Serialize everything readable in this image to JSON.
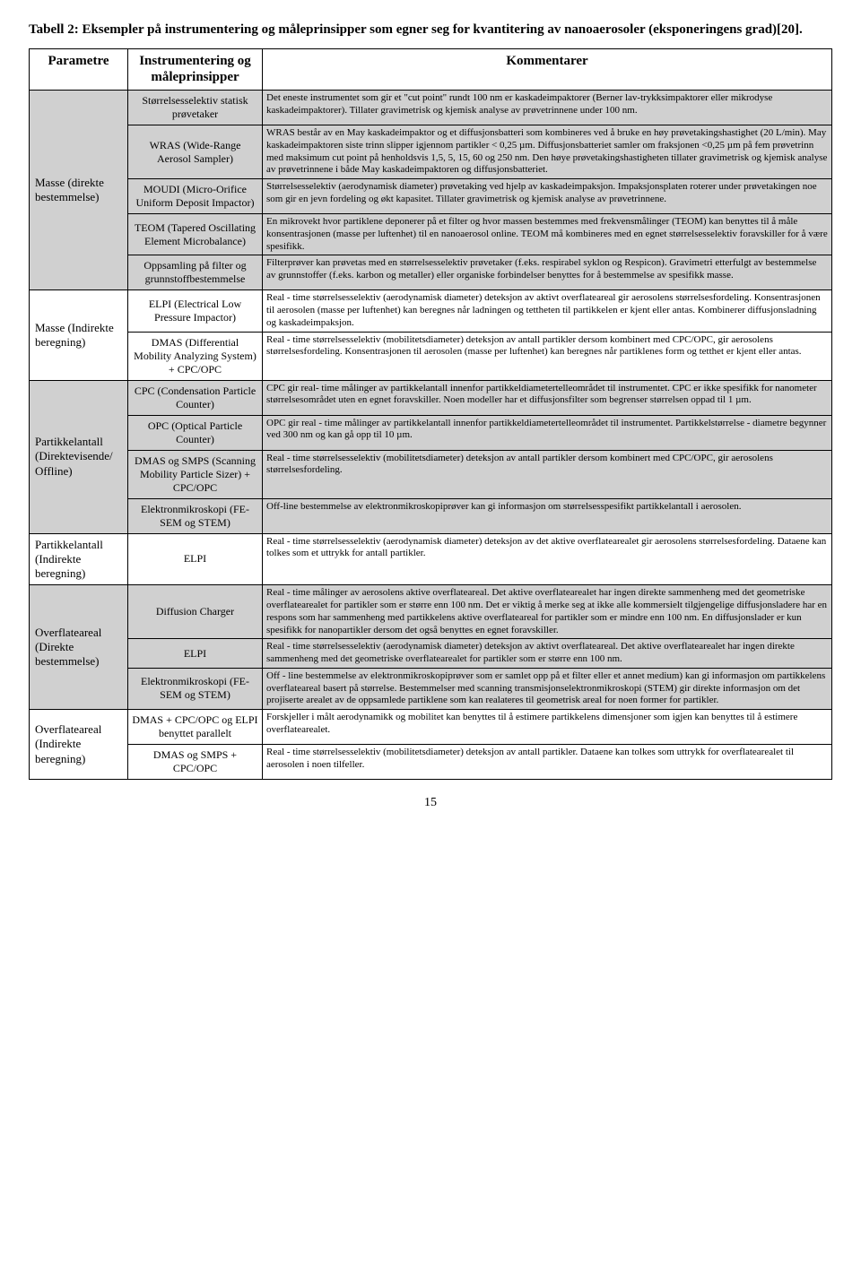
{
  "title": "Tabell 2: Eksempler på instrumentering og måleprinsipper som egner seg for kvantitering av nanoaerosoler (eksponeringens grad)[20].",
  "headers": {
    "param": "Parametre",
    "instr": "Instrumentering og måleprinsipper",
    "komm": "Kommentarer"
  },
  "rows": [
    {
      "param": "Masse (direkte bestemmelse)",
      "param_rowspan": 5,
      "shade": true,
      "instr": "Størrelsesselektiv statisk prøvetaker",
      "komm": "Det eneste instrumentet som gir et \"cut point\" rundt 100 nm er kaskadeimpaktorer (Berner lav-trykksimpaktorer eller mikrodyse kaskadeimpaktorer). Tillater gravimetrisk og kjemisk analyse av prøvetrinnene under 100 nm."
    },
    {
      "shade": true,
      "instr": "WRAS (Wide-Range Aerosol Sampler)",
      "komm": "WRAS består av en May kaskadeimpaktor og et diffusjonsbatteri som kombineres ved å bruke en høy prøvetakingshastighet (20 L/min). May kaskadeimpaktoren siste trinn slipper igjennom partikler < 0,25 µm. Diffusjonsbatteriet samler om fraksjonen <0,25 µm på fem prøvetrinn med maksimum cut point på henholdsvis 1,5, 5, 15, 60 og 250 nm. Den høye prøvetakingshastigheten tillater gravimetrisk og kjemisk analyse av prøvetrinnene i både May kaskadeimpaktoren og diffusjonsbatteriet."
    },
    {
      "shade": true,
      "instr": "MOUDI (Micro-Orifice Uniform Deposit Impactor)",
      "komm": "Størrelsesselektiv (aerodynamisk diameter) prøvetaking ved hjelp av kaskadeimpaksjon. Impaksjonsplaten roterer under prøvetakingen noe som gir en jevn fordeling og økt kapasitet. Tillater gravimetrisk og kjemisk analyse av prøvetrinnene."
    },
    {
      "shade": true,
      "instr": "TEOM (Tapered Oscillating Element Microbalance)",
      "komm": "En mikrovekt hvor partiklene deponerer på et filter og hvor massen bestemmes med frekvensmålinger (TEOM) kan benyttes til å måle konsentrasjonen (masse per luftenhet) til en nanoaerosol online. TEOM må kombineres med en egnet størrelsesselektiv foravskiller for å være spesifikk."
    },
    {
      "shade": true,
      "instr": "Oppsamling på filter og grunnstoffbestemmelse",
      "komm": "Filterprøver kan prøvetas med en størrelsesselektiv prøvetaker (f.eks. respirabel syklon og Respicon). Gravimetri etterfulgt av bestemmelse av grunnstoffer (f.eks. karbon og metaller) eller organiske forbindelser benyttes for å bestemmelse av spesifikk masse."
    },
    {
      "param": "Masse (Indirekte beregning)",
      "param_rowspan": 2,
      "instr": "ELPI (Electrical Low Pressure Impactor)",
      "komm": "Real - time størrelsesselektiv (aerodynamisk diameter) deteksjon av aktivt overflateareal gir aerosolens størrelsesfordeling. Konsentrasjonen til aerosolen (masse per luftenhet) kan beregnes når ladningen og tettheten til partikkelen er kjent eller antas. Kombinerer diffusjonsladning og kaskadeimpaksjon."
    },
    {
      "instr": "DMAS (Differential Mobility Analyzing System) + CPC/OPC",
      "komm": "Real - time størrelsesselektiv (mobilitetsdiameter) deteksjon av antall partikler dersom kombinert med CPC/OPC, gir aerosolens størrelsesfordeling. Konsentrasjonen til aerosolen (masse per luftenhet) kan beregnes når partiklenes form og tetthet er kjent eller antas."
    },
    {
      "param": "Partikkelantall (Direktevisende/ Offline)",
      "param_rowspan": 4,
      "shade": true,
      "instr": "CPC (Condensation Particle Counter)",
      "komm": "CPC gir real- time målinger av partikkelantall innenfor partikkeldiametertelleområdet til instrumentet. CPC er ikke spesifikk for nanometer størrelsesområdet uten en egnet foravskiller. Noen modeller har et diffusjonsfilter som begrenser størrelsen oppad til 1 µm."
    },
    {
      "shade": true,
      "instr": "OPC (Optical Particle Counter)",
      "komm": "OPC gir real - time målinger av partikkelantall innenfor partikkeldiametertelleområdet til instrumentet. Partikkelstørrelse - diametre begynner ved 300 nm og kan gå opp til 10 µm."
    },
    {
      "shade": true,
      "instr": "DMAS og SMPS (Scanning Mobility Particle Sizer) + CPC/OPC",
      "komm": "Real - time størrelsesselektiv (mobilitetsdiameter) deteksjon av antall partikler dersom kombinert med CPC/OPC, gir aerosolens størrelsesfordeling."
    },
    {
      "shade": true,
      "instr": "Elektronmikroskopi (FE-SEM og STEM)",
      "komm": "Off-line bestemmelse av elektronmikroskopiprøver kan gi informasjon om størrelsesspesifikt partikkelantall i aerosolen."
    },
    {
      "param": "Partikkelantall (Indirekte beregning)",
      "param_rowspan": 1,
      "instr": "ELPI",
      "komm": "Real - time størrelsesselektiv (aerodynamisk diameter) deteksjon av det aktive overflatearealet gir aerosolens størrelsesfordeling. Dataene kan tolkes som et uttrykk for antall partikler."
    },
    {
      "param": "Overflateareal (Direkte bestemmelse)",
      "param_rowspan": 3,
      "shade": true,
      "instr": "Diffusion Charger",
      "komm": "Real - time målinger av aerosolens aktive overflateareal. Det aktive overflatearealet har ingen direkte sammenheng med det geometriske overflatearealet for partikler som er større enn 100 nm. Det er viktig å merke seg at ikke alle kommersielt tilgjengelige diffusjonsladere har en respons som har sammenheng med partikkelens aktive overflateareal for partikler som er mindre enn 100 nm. En diffusjonslader er kun spesifikk for nanopartikler dersom det også benyttes en egnet foravskiller."
    },
    {
      "shade": true,
      "instr": "ELPI",
      "komm": "Real - time størrelsesselektiv (aerodynamisk diameter) deteksjon av aktivt overflateareal. Det aktive overflatearealet har ingen direkte sammenheng med det geometriske overflatearealet for partikler som er større enn 100 nm."
    },
    {
      "shade": true,
      "instr": "Elektronmikroskopi (FE-SEM og STEM)",
      "komm": "Off - line bestemmelse av elektronmikroskopiprøver som er samlet opp på et filter eller et annet medium) kan gi informasjon om partikkelens overflateareal basert på størrelse. Bestemmelser med scanning transmisjonselektronmikroskopi (STEM) gir direkte informasjon om det projiserte arealet av de oppsamlede partiklene som kan realateres til geometrisk areal for noen former for partikler."
    },
    {
      "param": "Overflateareal (Indirekte beregning)",
      "param_rowspan": 2,
      "instr": "DMAS + CPC/OPC og ELPI benyttet parallelt",
      "komm": "Forskjeller i målt aerodynamikk og mobilitet kan benyttes til å estimere partikkelens dimensjoner som igjen kan benyttes til å estimere overflatearealet."
    },
    {
      "instr": "DMAS og SMPS + CPC/OPC",
      "komm": "Real - time størrelsesselektiv (mobilitetsdiameter) deteksjon av antall partikler. Dataene kan tolkes som uttrykk for overflatearealet til aerosolen i noen tilfeller."
    }
  ],
  "page_number": "15"
}
